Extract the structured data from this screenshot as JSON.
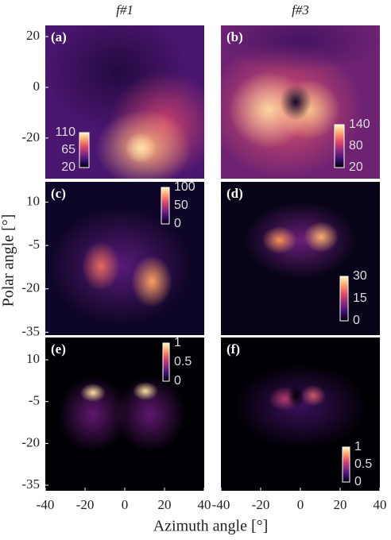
{
  "figure": {
    "column_titles": [
      "f#1",
      "f#3"
    ],
    "ylabel": "Polar angle [°]",
    "xlabel": "Azimuth angle [°]"
  },
  "chart_data": [
    {
      "type": "heatmap",
      "label": "(a)",
      "xlim": [
        -40,
        40
      ],
      "ylim": [
        -36,
        24.4
      ],
      "yticks": [
        20,
        0,
        -20
      ],
      "colormap": "magma",
      "colorbar": {
        "clim": [
          20,
          110
        ],
        "ticks": [
          110,
          65,
          20
        ]
      }
    },
    {
      "type": "heatmap",
      "label": "(b)",
      "xlim": [
        -40,
        40
      ],
      "ylim": [
        -36,
        24.4
      ],
      "colormap": "magma",
      "colorbar": {
        "clim": [
          20,
          140
        ],
        "ticks": [
          140,
          80,
          20
        ]
      }
    },
    {
      "type": "heatmap",
      "label": "(c)",
      "xlim": [
        -40,
        40
      ],
      "ylim": [
        -36,
        17
      ],
      "yticks": [
        10,
        -5,
        -20,
        -35
      ],
      "colormap": "magma",
      "colorbar": {
        "clim": [
          0,
          100
        ],
        "ticks": [
          100,
          50,
          0
        ]
      }
    },
    {
      "type": "heatmap",
      "label": "(d)",
      "xlim": [
        -40,
        40
      ],
      "ylim": [
        -36,
        17
      ],
      "colormap": "magma",
      "colorbar": {
        "clim": [
          0,
          30
        ],
        "ticks": [
          30,
          15,
          0
        ]
      }
    },
    {
      "type": "heatmap",
      "label": "(e)",
      "xlim": [
        -40,
        40
      ],
      "ylim": [
        -37,
        18
      ],
      "yticks": [
        10,
        -5,
        -20,
        -35
      ],
      "xticks": [
        -40,
        -20,
        0,
        20,
        40
      ],
      "colormap": "magma",
      "colorbar": {
        "clim": [
          0,
          1
        ],
        "ticks": [
          1,
          0.5,
          0
        ]
      }
    },
    {
      "type": "heatmap",
      "label": "(f)",
      "xlim": [
        -40,
        40
      ],
      "ylim": [
        -37,
        18
      ],
      "xticks": [
        -40,
        -20,
        0,
        20,
        40
      ],
      "colormap": "magma",
      "colorbar": {
        "clim": [
          0,
          1
        ],
        "ticks": [
          1,
          0.5,
          0
        ]
      }
    }
  ]
}
